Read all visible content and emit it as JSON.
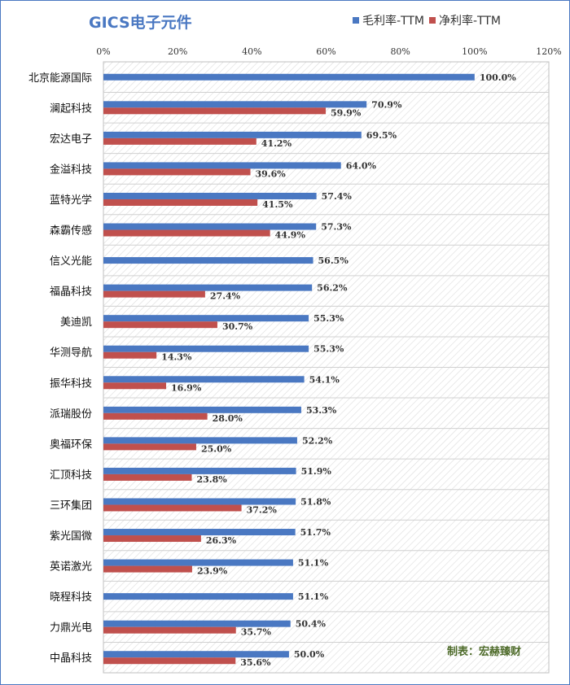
{
  "chart_data": {
    "type": "bar",
    "orientation": "horizontal",
    "title": "GICS电子元件",
    "categories": [
      "北京能源国际",
      "澜起科技",
      "宏达电子",
      "金溢科技",
      "蓝特光学",
      "森霸传感",
      "信义光能",
      "福晶科技",
      "美迪凯",
      "华测导航",
      "振华科技",
      "派瑞股份",
      "奥福环保",
      "汇顶科技",
      "三环集团",
      "紫光国微",
      "英诺激光",
      "晓程科技",
      "力鼎光电",
      "中晶科技"
    ],
    "series": [
      {
        "name": "毛利率-TTM",
        "color": "#4a78c2",
        "values": [
          100.0,
          70.9,
          69.5,
          64.0,
          57.4,
          57.3,
          56.5,
          56.2,
          55.3,
          55.3,
          54.1,
          53.3,
          52.2,
          51.9,
          51.8,
          51.7,
          51.1,
          51.1,
          50.4,
          50.0
        ],
        "labels": [
          "100.0%",
          "70.9%",
          "69.5%",
          "64.0%",
          "57.4%",
          "57.3%",
          "56.5%",
          "56.2%",
          "55.3%",
          "55.3%",
          "54.1%",
          "53.3%",
          "52.2%",
          "51.9%",
          "51.8%",
          "51.7%",
          "51.1%",
          "51.1%",
          "50.4%",
          "50.0%"
        ]
      },
      {
        "name": "净利率-TTM",
        "color": "#c0504d",
        "values": [
          null,
          59.9,
          41.2,
          39.6,
          41.5,
          44.9,
          null,
          27.4,
          30.7,
          14.3,
          16.9,
          28.0,
          25.0,
          23.8,
          37.2,
          26.3,
          23.9,
          null,
          35.7,
          35.6
        ],
        "labels": [
          "",
          "59.9%",
          "41.2%",
          "39.6%",
          "41.5%",
          "44.9%",
          "",
          "27.4%",
          "30.7%",
          "14.3%",
          "16.9%",
          "28.0%",
          "25.0%",
          "23.8%",
          "37.2%",
          "26.3%",
          "23.9%",
          "",
          "35.7%",
          "35.6%"
        ]
      }
    ],
    "xlim": [
      0,
      120
    ],
    "xticks": [
      "0%",
      "20%",
      "40%",
      "60%",
      "80%",
      "100%",
      "120%"
    ],
    "legend_position": "top-right",
    "grid": true
  },
  "credit": "制表：宏赫臻财"
}
